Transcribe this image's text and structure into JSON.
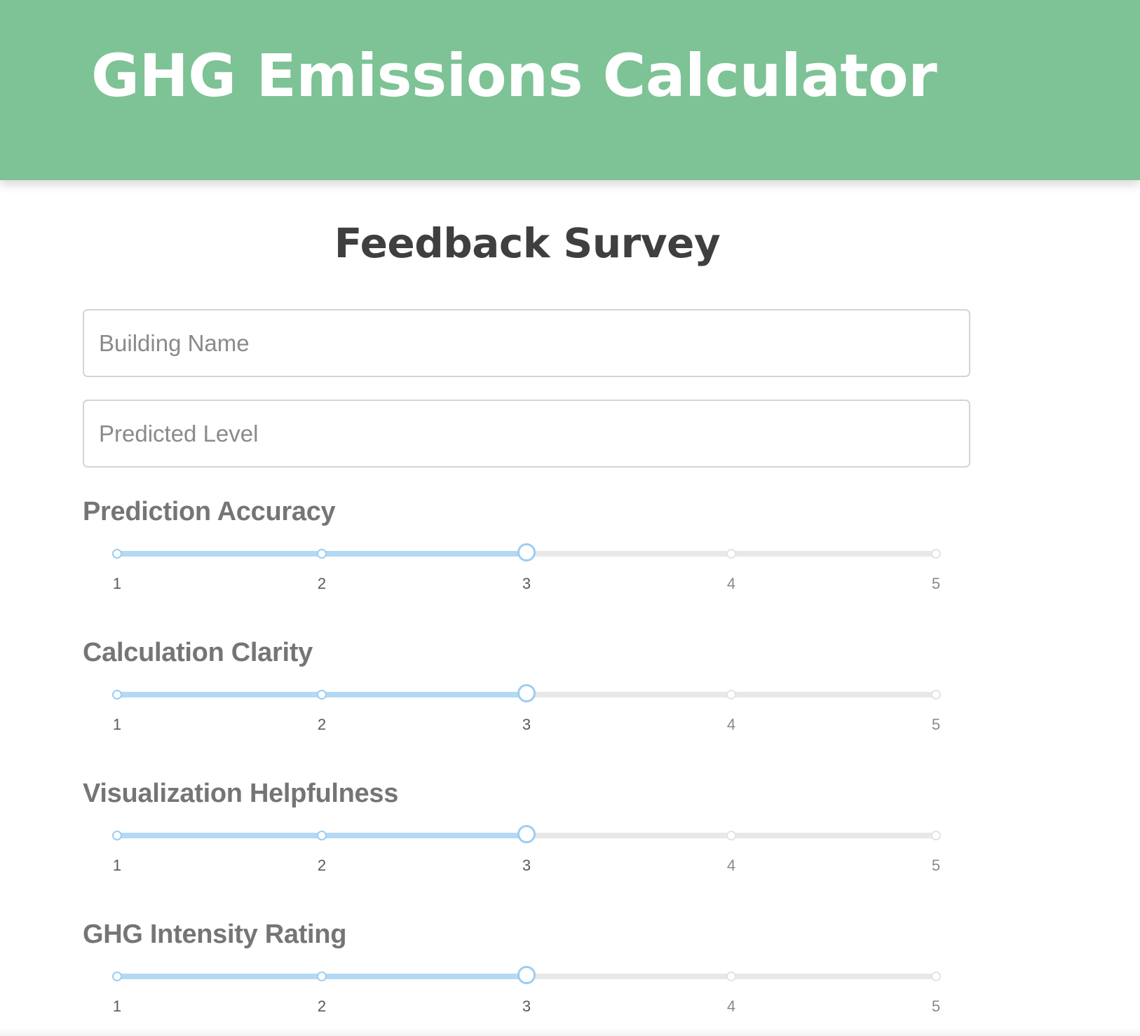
{
  "header": {
    "title": "GHG Emissions Calculator",
    "background_color": "#7dc395"
  },
  "survey": {
    "title": "Feedback Survey",
    "fields": {
      "building_name": {
        "placeholder": "Building Name",
        "value": ""
      },
      "predicted_level": {
        "placeholder": "Predicted Level",
        "value": ""
      }
    },
    "ratings": [
      {
        "label": "Prediction Accuracy",
        "min": 1,
        "max": 5,
        "value": 3,
        "ticks": [
          "1",
          "2",
          "3",
          "4",
          "5"
        ]
      },
      {
        "label": "Calculation Clarity",
        "min": 1,
        "max": 5,
        "value": 3,
        "ticks": [
          "1",
          "2",
          "3",
          "4",
          "5"
        ]
      },
      {
        "label": "Visualization Helpfulness",
        "min": 1,
        "max": 5,
        "value": 3,
        "ticks": [
          "1",
          "2",
          "3",
          "4",
          "5"
        ]
      },
      {
        "label": "GHG Intensity Rating",
        "min": 1,
        "max": 5,
        "value": 3,
        "ticks": [
          "1",
          "2",
          "3",
          "4",
          "5"
        ]
      }
    ]
  },
  "colors": {
    "slider_active": "#b3d9f5",
    "slider_track": "#e8e8e8"
  }
}
